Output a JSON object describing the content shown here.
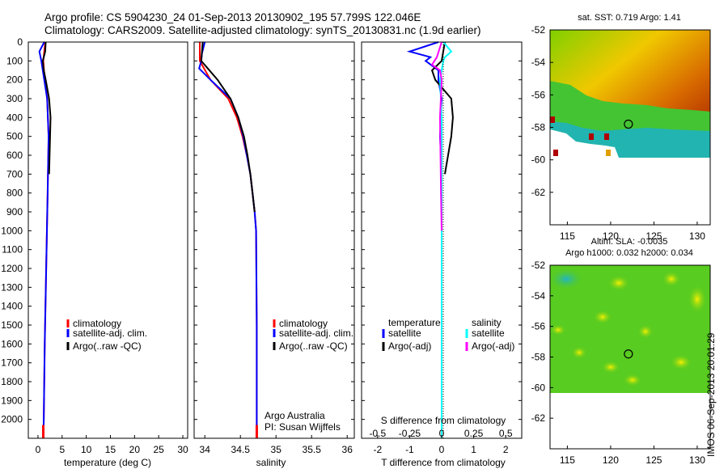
{
  "header": {
    "line1": "Argo profile: CS 5904230_24 01-Sep-2013 20130902_195 57.799S 122.046E",
    "line2": "Climatology: CARS2009. Satellite-adjusted climatology: synTS_20130831.nc (1.9d earlier)"
  },
  "depth_ticks": [
    0,
    100,
    200,
    300,
    400,
    500,
    600,
    700,
    800,
    900,
    1000,
    1100,
    1200,
    1300,
    1400,
    1500,
    1600,
    1700,
    1800,
    1900,
    2000
  ],
  "colors": {
    "climatology": "#ff0000",
    "satellite": "#0000ff",
    "argo": "#000000",
    "satellite_salinity": "#00ffff",
    "argo_salinity_diff": "#ff00ff"
  },
  "panels": {
    "temperature": {
      "xlabel": "temperature (deg C)",
      "xticks": [
        "0",
        "5",
        "10",
        "15",
        "20",
        "25",
        "30"
      ],
      "legend": [
        "climatology",
        "satellite-adj. clim.",
        "Argo(..raw -QC)"
      ]
    },
    "salinity": {
      "xlabel": "salinity",
      "xticks": [
        "34",
        "34.5",
        "35",
        "35.5",
        "36"
      ],
      "legend": [
        "climatology",
        "satellite-adj. clim.",
        "Argo(..raw -QC)"
      ],
      "note1": "Argo Australia",
      "note2": "PI: Susan Wijffels"
    },
    "difference": {
      "xlabel": "T difference from climatology",
      "top_label": "S difference from climatology",
      "top_ticks": [
        "-0.5",
        "-0.25",
        "0",
        "0.25",
        "0.5"
      ],
      "xticks": [
        "-2",
        "-1",
        "0",
        "1",
        "2"
      ],
      "legend_temp_title": "temperature",
      "legend_sal_title": "salinity",
      "legend_sat": "satellite",
      "legend_argo": "Argo(-adj)"
    }
  },
  "maps": {
    "sst": {
      "title": "sat. SST: 0.719  Argo: 1.41",
      "yticks": [
        "-52",
        "-54",
        "-56",
        "-58",
        "-60",
        "-62"
      ],
      "xticks": [
        "115",
        "120",
        "125",
        "130"
      ]
    },
    "sla": {
      "title1": "Altim. SLA: -0.0035",
      "title2": "Argo h1000: 0.032 h2000: 0.034",
      "yticks": [
        "-52",
        "-54",
        "-56",
        "-58",
        "-60",
        "-62"
      ],
      "xticks": [
        "115",
        "120",
        "125",
        "130"
      ]
    }
  },
  "stamp": "IMOS 06-Sep-2013 20:01:29",
  "chart_data": [
    {
      "type": "line",
      "xlabel": "temperature (deg C)",
      "ylabel": "",
      "xlim": [
        -2,
        31
      ],
      "ylim": [
        2100,
        0
      ],
      "y_reversed": true,
      "series": [
        {
          "name": "climatology",
          "color": "#ff0000",
          "depth": [
            0,
            50,
            100,
            200,
            300,
            500,
            800,
            1200,
            1600,
            2000,
            2100
          ],
          "values": [
            1.5,
            1.3,
            1.1,
            1.4,
            1.9,
            2.2,
            2.0,
            1.7,
            1.4,
            1.2,
            1.1
          ]
        },
        {
          "name": "satellite-adj. clim.",
          "color": "#0000ff",
          "depth": [
            0,
            50,
            100,
            200,
            300,
            500,
            800,
            1200,
            1600,
            2000,
            2100
          ],
          "values": [
            1.3,
            0.3,
            0.7,
            1.3,
            1.9,
            2.2,
            2.0,
            1.7,
            1.4,
            1.2,
            1.1
          ]
        },
        {
          "name": "Argo(..raw -QC)",
          "color": "#000000",
          "depth": [
            0,
            50,
            100,
            150,
            200,
            300,
            400,
            500,
            600,
            700
          ],
          "values": [
            1.6,
            1.5,
            1.0,
            1.2,
            1.6,
            2.3,
            2.6,
            2.5,
            2.4,
            2.3
          ]
        }
      ]
    },
    {
      "type": "line",
      "xlabel": "salinity",
      "ylabel": "",
      "xlim": [
        33.85,
        36.1
      ],
      "ylim": [
        2100,
        0
      ],
      "y_reversed": true,
      "series": [
        {
          "name": "climatology",
          "color": "#ff0000",
          "depth": [
            0,
            100,
            200,
            300,
            400,
            500,
            600,
            700,
            800,
            900,
            1000,
            1500,
            2100
          ],
          "values": [
            33.93,
            33.93,
            34.08,
            34.33,
            34.45,
            34.53,
            34.59,
            34.64,
            34.67,
            34.7,
            34.72,
            34.73,
            34.73
          ]
        },
        {
          "name": "satellite-adj. clim.",
          "color": "#0000ff",
          "depth": [
            0,
            60,
            100,
            140,
            200,
            300,
            400,
            500,
            600,
            700,
            800,
            900,
            1000,
            1500,
            2100
          ],
          "values": [
            34.0,
            33.96,
            33.95,
            33.92,
            34.08,
            34.36,
            34.47,
            34.54,
            34.59,
            34.64,
            34.67,
            34.7,
            34.72,
            34.73,
            34.73
          ]
        },
        {
          "name": "Argo(..raw -QC)",
          "color": "#000000",
          "depth": [
            0,
            100,
            200,
            300,
            400,
            500,
            600,
            700,
            800,
            900
          ],
          "values": [
            33.97,
            33.95,
            34.18,
            34.36,
            34.47,
            34.55,
            34.6,
            34.64,
            34.67,
            34.7
          ]
        }
      ]
    },
    {
      "type": "line",
      "xlabel": "T difference from climatology",
      "ylabel": "",
      "xlim": [
        -2.5,
        2.5
      ],
      "ylim": [
        2100,
        0
      ],
      "y_reversed": true,
      "secondary_xlabel": "S difference from climatology",
      "secondary_xlim": [
        -0.625,
        0.625
      ],
      "series": [
        {
          "name": "temperature satellite",
          "color": "#0000ff",
          "depth": [
            0,
            50,
            80,
            100,
            150,
            200,
            300,
            500,
            700,
            900,
            1100,
            2100
          ],
          "values": [
            -0.1,
            -1.0,
            -0.35,
            -0.5,
            -0.1,
            -0.1,
            0.0,
            -0.05,
            0.0,
            0.0,
            0.0,
            0.0
          ]
        },
        {
          "name": "temperature Argo(-adj)",
          "color": "#000000",
          "depth": [
            0,
            100,
            150,
            200,
            300,
            400,
            500,
            700
          ],
          "values": [
            0.1,
            0.0,
            -0.3,
            -0.2,
            0.3,
            0.35,
            0.3,
            0.1
          ]
        },
        {
          "name": "salinity satellite",
          "color": "#00ffff",
          "depth": [
            0,
            50,
            80,
            100,
            150,
            200,
            400,
            800,
            1100,
            2100
          ],
          "values": [
            0.05,
            0.3,
            0.1,
            0.05,
            0.0,
            -0.05,
            0.0,
            0.0,
            0.0,
            0.0
          ]
        },
        {
          "name": "salinity Argo(-adj)",
          "color": "#ff00ff",
          "depth": [
            0,
            80,
            120,
            150,
            200,
            400,
            800,
            1000
          ],
          "values": [
            0.0,
            -0.15,
            -0.3,
            -0.05,
            0.0,
            -0.05,
            -0.02,
            0.0
          ]
        }
      ]
    },
    {
      "type": "heatmap",
      "title": "sat. SST: 0.719  Argo: 1.41",
      "xlim": [
        113,
        131.5
      ],
      "ylim": [
        -64,
        -52
      ],
      "marker": {
        "lon": 122.05,
        "lat": -57.8
      }
    },
    {
      "type": "heatmap",
      "title": "Altim. SLA: -0.0035",
      "xlim": [
        113,
        131.5
      ],
      "ylim": [
        -64,
        -52
      ],
      "marker": {
        "lon": 122.05,
        "lat": -57.8
      }
    }
  ]
}
